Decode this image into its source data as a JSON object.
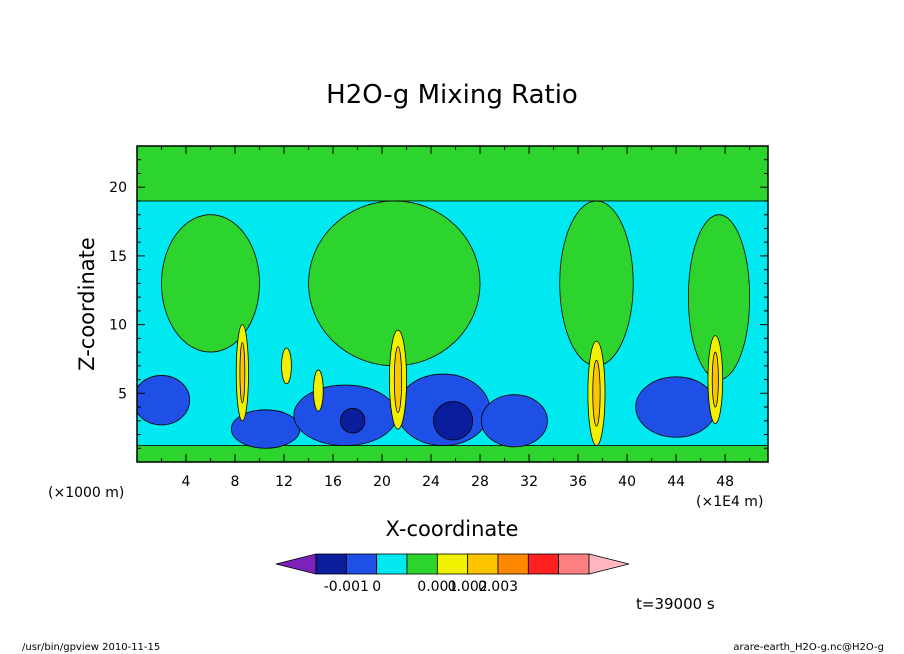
{
  "chart_data": {
    "type": "heatmap",
    "title": "H2O-g Mixing Ratio",
    "xlabel": "X-coordinate",
    "ylabel": "Z-coordinate",
    "x_unit_left": "(×1000 m)",
    "x_unit_right": "(×1E4 m)",
    "xlim": [
      0,
      51.5
    ],
    "ylim": [
      0,
      23
    ],
    "x_ticks": [
      4,
      8,
      12,
      16,
      20,
      24,
      28,
      32,
      36,
      40,
      44,
      48
    ],
    "y_ticks": [
      5,
      10,
      15,
      20
    ],
    "x_tick_labels": [
      "4",
      "8",
      "12",
      "16",
      "20",
      "24",
      "28",
      "32",
      "36",
      "40",
      "44",
      "48"
    ],
    "y_tick_labels": [
      "5",
      "10",
      "15",
      "20"
    ],
    "time_label": "t=39000 s",
    "colorbar": {
      "colors": [
        "#7b22b8",
        "#0a1e9c",
        "#1e4fe6",
        "#00e8f0",
        "#2ed42e",
        "#f0f000",
        "#ffc400",
        "#ff8800",
        "#ff2020",
        "#ff8080",
        "#ffb6c1"
      ],
      "tick_labels": [
        "-0.001",
        "0",
        "0.001",
        "0.002",
        "0.003"
      ]
    },
    "regions": [
      {
        "level": "0",
        "color": "#00e8f0",
        "shape": "background",
        "x": [
          0,
          51.5
        ],
        "z": [
          0,
          23
        ]
      },
      {
        "level": "small positive",
        "color": "#2ed42e",
        "shape": "band",
        "x": [
          0,
          51.5
        ],
        "z": [
          0,
          1.2
        ]
      },
      {
        "level": "small positive",
        "color": "#2ed42e",
        "shape": "band",
        "x": [
          0,
          51.5
        ],
        "z": [
          19,
          23
        ]
      },
      {
        "level": "small positive",
        "color": "#2ed42e",
        "shape": "blob",
        "cx": 21,
        "cz": 13,
        "rx": 7,
        "rz": 6
      },
      {
        "level": "small positive",
        "color": "#2ed42e",
        "shape": "blob",
        "cx": 37.5,
        "cz": 13,
        "rx": 3,
        "rz": 6
      },
      {
        "level": "small positive",
        "color": "#2ed42e",
        "shape": "blob",
        "cx": 47.5,
        "cz": 12,
        "rx": 2.5,
        "rz": 6
      },
      {
        "level": "small positive",
        "color": "#2ed42e",
        "shape": "blob",
        "cx": 6,
        "cz": 13,
        "rx": 4,
        "rz": 5
      },
      {
        "level": "negative",
        "color": "#1e4fe6",
        "shape": "blob",
        "cx": 2,
        "cz": 4.5,
        "rx": 2.3,
        "rz": 1.8
      },
      {
        "level": "negative",
        "color": "#1e4fe6",
        "shape": "blob",
        "cx": 10.5,
        "cz": 2.4,
        "rx": 2.8,
        "rz": 1.4
      },
      {
        "level": "negative",
        "color": "#1e4fe6",
        "shape": "blob",
        "cx": 17,
        "cz": 3.4,
        "rx": 4.2,
        "rz": 2.2
      },
      {
        "level": "negative",
        "color": "#1e4fe6",
        "shape": "blob",
        "cx": 25,
        "cz": 3.8,
        "rx": 3.8,
        "rz": 2.6
      },
      {
        "level": "negative",
        "color": "#1e4fe6",
        "shape": "blob",
        "cx": 30.8,
        "cz": 3.0,
        "rx": 2.7,
        "rz": 1.9
      },
      {
        "level": "negative",
        "color": "#1e4fe6",
        "shape": "blob",
        "cx": 44,
        "cz": 4.0,
        "rx": 3.3,
        "rz": 2.2
      },
      {
        "level": "more negative",
        "color": "#0a1e9c",
        "shape": "blob",
        "cx": 25.8,
        "cz": 3.0,
        "rx": 1.6,
        "rz": 1.4
      },
      {
        "level": "more negative",
        "color": "#0a1e9c",
        "shape": "blob",
        "cx": 17.6,
        "cz": 3.0,
        "rx": 1.0,
        "rz": 0.9
      },
      {
        "level": "positive",
        "color": "#f0f000",
        "shape": "column",
        "cx": 8.6,
        "cz": 6.5,
        "rx": 0.5,
        "rz": 3.5
      },
      {
        "level": "positive",
        "color": "#f0f000",
        "shape": "column",
        "cx": 12.2,
        "cz": 7.0,
        "rx": 0.4,
        "rz": 1.3
      },
      {
        "level": "positive",
        "color": "#f0f000",
        "shape": "column",
        "cx": 14.8,
        "cz": 5.2,
        "rx": 0.4,
        "rz": 1.5
      },
      {
        "level": "positive",
        "color": "#f0f000",
        "shape": "column",
        "cx": 21.3,
        "cz": 6.0,
        "rx": 0.7,
        "rz": 3.6
      },
      {
        "level": "positive",
        "color": "#f0f000",
        "shape": "column",
        "cx": 37.5,
        "cz": 5.0,
        "rx": 0.7,
        "rz": 3.8
      },
      {
        "level": "positive",
        "color": "#f0f000",
        "shape": "column",
        "cx": 47.2,
        "cz": 6.0,
        "rx": 0.6,
        "rz": 3.2
      },
      {
        "level": "higher positive",
        "color": "#ffc400",
        "shape": "column",
        "cx": 21.3,
        "cz": 6.0,
        "rx": 0.3,
        "rz": 2.4
      },
      {
        "level": "higher positive",
        "color": "#ffc400",
        "shape": "column",
        "cx": 37.5,
        "cz": 5.0,
        "rx": 0.3,
        "rz": 2.4
      },
      {
        "level": "higher positive",
        "color": "#ffc400",
        "shape": "column",
        "cx": 47.2,
        "cz": 6.0,
        "rx": 0.25,
        "rz": 2.0
      },
      {
        "level": "higher positive",
        "color": "#ffc400",
        "shape": "column",
        "cx": 8.6,
        "cz": 6.5,
        "rx": 0.2,
        "rz": 2.2
      }
    ]
  },
  "footer": {
    "left": "/usr/bin/gpview   2010-11-15",
    "right": "arare-earth_H2O-g.nc@H2O-g"
  }
}
